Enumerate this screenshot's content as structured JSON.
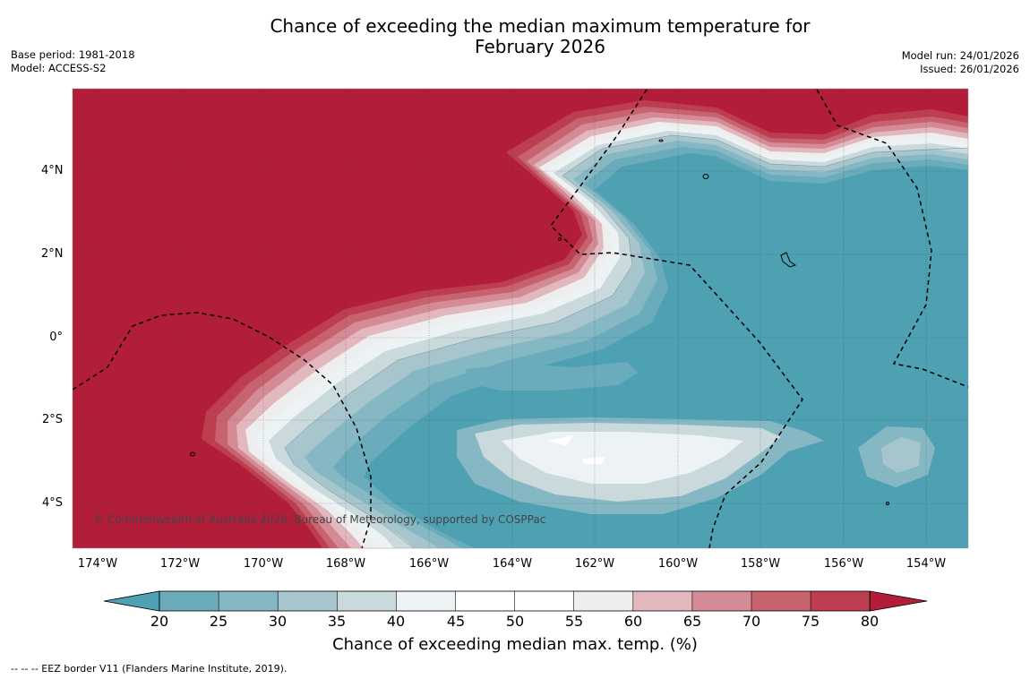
{
  "title_line1": "Chance of exceeding the median maximum temperature for",
  "title_line2": "February 2026",
  "meta_left": {
    "base_period": "Base period: 1981-2018",
    "model": "Model: ACCESS-S2"
  },
  "meta_right": {
    "model_run": "Model run: 24/01/2026",
    "issued": "Issued: 26/01/2026"
  },
  "y_ticks": [
    "4°N",
    "2°N",
    "0°",
    "2°S",
    "4°S"
  ],
  "x_ticks": [
    "174°W",
    "172°W",
    "170°W",
    "168°W",
    "166°W",
    "164°W",
    "162°W",
    "160°W",
    "158°W",
    "156°W",
    "154°W"
  ],
  "copyright": "© Commonwealth of Australia 2026, Bureau of Meteorology, supported by COSPPac",
  "colorbar": {
    "labels": [
      "20",
      "25",
      "30",
      "35",
      "40",
      "45",
      "50",
      "55",
      "60",
      "65",
      "70",
      "75",
      "80"
    ],
    "colors": [
      "#4da1b3",
      "#6aacbb",
      "#86b8c4",
      "#a6c5cc",
      "#c9d9dc",
      "#edf3f4",
      "#ffffff",
      "#ffffff",
      "#eeeeee",
      "#e2b8be",
      "#d48b96",
      "#c7626f",
      "#bd3e50",
      "#b21e39"
    ],
    "title": "Chance of exceeding median max. temp. (%)"
  },
  "eez_note": "--  --  -- EEZ border V11 (Flanders Marine Institute, 2019)."
}
